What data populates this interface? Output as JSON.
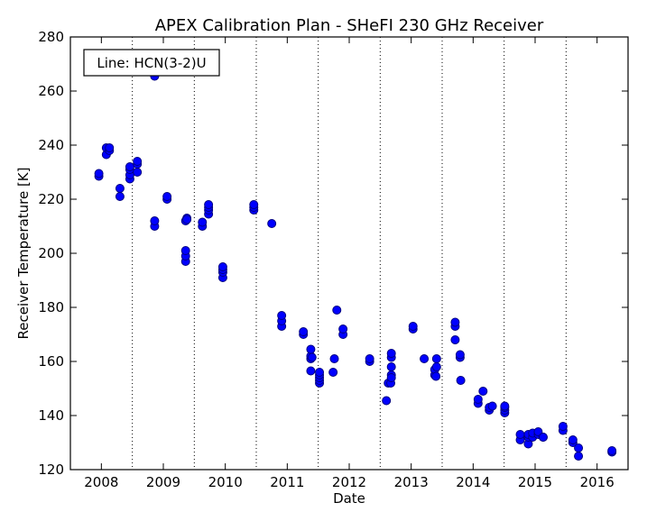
{
  "chart_data": {
    "type": "scatter",
    "title": "APEX Calibration Plan - SHeFI 230 GHz Receiver",
    "xlabel": "Date",
    "ylabel": "Receiver Temperature [K]",
    "annotation": "Line: HCN(3-2)U",
    "xlim": [
      2007.5,
      2016.5
    ],
    "ylim": [
      120,
      280
    ],
    "x_ticks": [
      2008,
      2009,
      2010,
      2011,
      2012,
      2013,
      2014,
      2015,
      2016
    ],
    "x_tick_labels": [
      "2008",
      "2009",
      "2010",
      "2011",
      "2012",
      "2013",
      "2014",
      "2015",
      "2016"
    ],
    "y_ticks": [
      120,
      140,
      160,
      180,
      200,
      220,
      240,
      260,
      280
    ],
    "y_tick_labels": [
      "120",
      "140",
      "160",
      "180",
      "200",
      "220",
      "240",
      "260",
      "280"
    ],
    "vlines": [
      2008.5,
      2009.5,
      2010.5,
      2011.5,
      2012.5,
      2013.5,
      2014.5,
      2015.5
    ],
    "marker_color": "#0000ff",
    "marker_edge": "#000080",
    "series": [
      {
        "x": [
          2007.96,
          2007.96,
          2008.08,
          2008.08,
          2008.13,
          2008.13,
          2008.3,
          2008.3,
          2008.46,
          2008.46,
          2008.46,
          2008.46,
          2008.58,
          2008.58,
          2008.58,
          2008.86,
          2008.86,
          2008.86,
          2009.06,
          2009.06,
          2009.36,
          2009.36,
          2009.36,
          2009.36,
          2009.38,
          2009.38,
          2009.63,
          2009.63,
          2009.73,
          2009.73,
          2009.73,
          2009.73,
          2009.96,
          2009.96,
          2009.96,
          2009.96,
          2010.46,
          2010.46,
          2010.46,
          2010.75,
          2010.91,
          2010.91,
          2010.91,
          2011.26,
          2011.26,
          2011.38,
          2011.38,
          2011.38,
          2011.38,
          2011.4,
          2011.52,
          2011.52,
          2011.52,
          2011.52,
          2011.52,
          2011.74,
          2011.76,
          2011.8,
          2011.9,
          2011.9,
          2012.33,
          2012.33,
          2012.6,
          2012.63,
          2012.67,
          2012.68,
          2012.68,
          2012.68,
          2012.68,
          2012.68,
          2013.03,
          2013.03,
          2013.21,
          2013.38,
          2013.38,
          2013.4,
          2013.41,
          2013.41,
          2013.71,
          2013.71,
          2013.71,
          2013.79,
          2013.79,
          2013.8,
          2014.08,
          2014.08,
          2014.16,
          2014.26,
          2014.26,
          2014.31,
          2014.51,
          2014.51,
          2014.51,
          2014.51,
          2014.76,
          2014.76,
          2014.89,
          2014.89,
          2014.89,
          2014.96,
          2014.96,
          2015.05,
          2015.05,
          2015.13,
          2015.13,
          2015.45,
          2015.45,
          2015.61,
          2015.61,
          2015.7,
          2015.7,
          2016.24,
          2016.24
        ],
        "y": [
          228.5,
          229.5,
          236.5,
          239,
          238,
          239,
          221,
          224,
          227.5,
          229,
          231,
          232,
          230,
          233,
          234,
          210,
          212,
          265.5,
          220,
          221,
          197,
          199,
          201,
          212,
          213,
          212.5,
          210,
          211.5,
          214.5,
          216,
          217,
          218,
          191,
          193,
          194,
          195,
          216,
          217,
          218,
          211,
          173,
          175,
          177,
          170,
          171,
          156.5,
          161,
          162,
          164.5,
          161.5,
          152,
          153,
          154,
          155,
          156,
          156,
          161,
          179,
          170,
          172,
          160,
          161,
          145.5,
          152,
          152,
          155,
          158,
          161.5,
          163,
          154,
          172,
          173,
          161,
          155,
          157,
          154.5,
          158,
          161,
          168,
          173,
          174.5,
          161.5,
          162.5,
          153,
          144.5,
          146,
          149,
          142,
          143,
          143.5,
          141,
          142,
          143,
          143.5,
          131,
          133,
          129.5,
          132,
          133,
          132,
          133.5,
          133,
          134,
          132,
          132,
          134.5,
          136,
          130,
          131,
          125,
          128,
          126.5,
          127
        ]
      }
    ]
  }
}
